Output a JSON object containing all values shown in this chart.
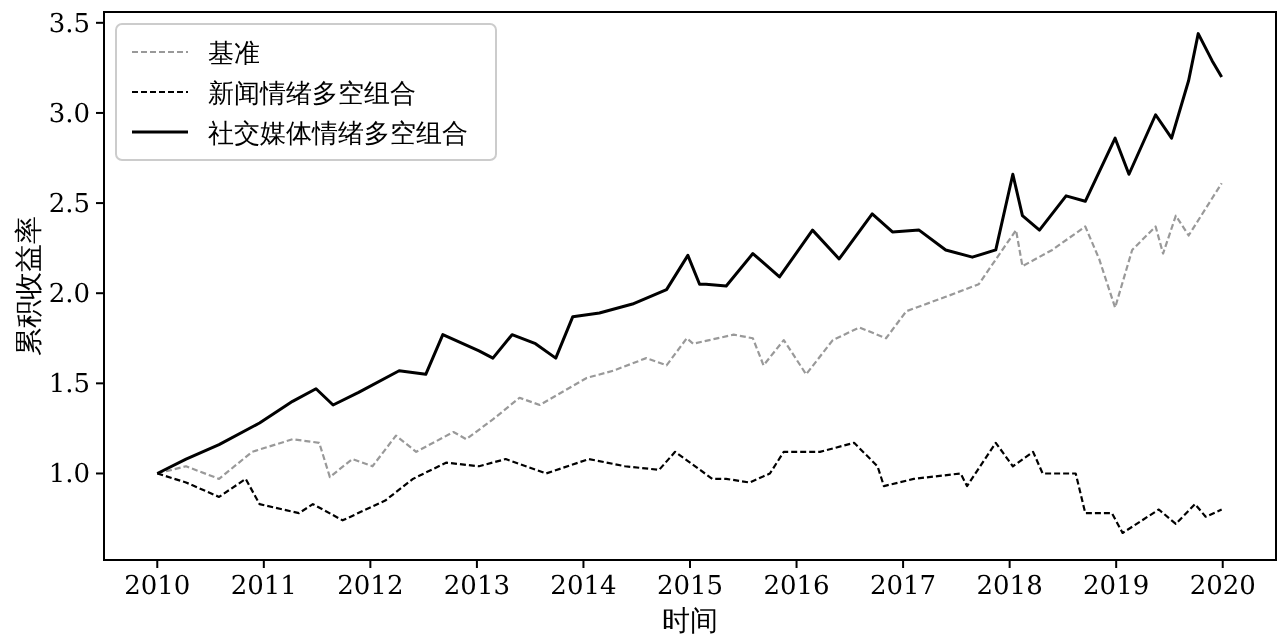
{
  "chart_data": {
    "type": "line",
    "xlabel": "时间",
    "ylabel": "累积收益率",
    "legend": "top left",
    "grid": false,
    "marker": "none",
    "xlim": [
      2009.5,
      2020.5
    ],
    "ylim": [
      0.52,
      3.56
    ],
    "xticks": [
      2010,
      2011,
      2012,
      2013,
      2014,
      2015,
      2016,
      2017,
      2018,
      2019,
      2020
    ],
    "yticks": [
      {
        "value": 1,
        "label": "1.0"
      },
      {
        "value": 1.5,
        "label": "1.5"
      },
      {
        "value": 2,
        "label": "2.0"
      },
      {
        "value": 2.5,
        "label": "2.5"
      },
      {
        "value": 3,
        "label": "3.0"
      },
      {
        "value": 3.5,
        "label": "3.5"
      }
    ],
    "series": [
      {
        "name": "基准",
        "color": "#999999",
        "line_style": "dashed",
        "x": [
          2010,
          2010.27,
          2010.58,
          2010.89,
          2011.27,
          2011.52,
          2011.62,
          2011.83,
          2012.02,
          2012.24,
          2012.43,
          2012.78,
          2012.9,
          2013.15,
          2013.4,
          2013.59,
          2014.03,
          2014.28,
          2014.59,
          2014.78,
          2014.97,
          2015.03,
          2015.41,
          2015.59,
          2015.69,
          2015.88,
          2016.09,
          2016.34,
          2016.59,
          2016.84,
          2017.03,
          2017.4,
          2017.71,
          2018.06,
          2018.12,
          2018.4,
          2018.71,
          2018.84,
          2018.99,
          2019.15,
          2019.37,
          2019.44,
          2019.56,
          2019.68,
          2019.99
        ],
        "values": [
          1.0,
          1.04,
          0.97,
          1.12,
          1.19,
          1.17,
          0.98,
          1.08,
          1.04,
          1.21,
          1.12,
          1.23,
          1.19,
          1.3,
          1.42,
          1.38,
          1.53,
          1.57,
          1.64,
          1.6,
          1.75,
          1.72,
          1.77,
          1.75,
          1.6,
          1.74,
          1.55,
          1.74,
          1.81,
          1.75,
          1.9,
          1.98,
          2.05,
          2.35,
          2.15,
          2.24,
          2.37,
          2.19,
          1.92,
          2.24,
          2.37,
          2.22,
          2.43,
          2.32,
          2.61
        ]
      },
      {
        "name": "新闻情绪多空组合",
        "color": "#000000",
        "line_style": "dashed",
        "x": [
          2010,
          2010.27,
          2010.58,
          2010.83,
          2010.96,
          2011.33,
          2011.46,
          2011.74,
          2012.14,
          2012.4,
          2012.71,
          2013.02,
          2013.27,
          2013.65,
          2014.05,
          2014.39,
          2014.71,
          2014.86,
          2015.21,
          2015.34,
          2015.56,
          2015.75,
          2015.88,
          2016.22,
          2016.54,
          2016.76,
          2016.82,
          2017.1,
          2017.54,
          2017.6,
          2017.87,
          2018.03,
          2018.22,
          2018.31,
          2018.62,
          2018.71,
          2018.96,
          2019.06,
          2019.4,
          2019.56,
          2019.74,
          2019.84,
          2019.99
        ],
        "values": [
          1.0,
          0.95,
          0.87,
          0.97,
          0.83,
          0.78,
          0.83,
          0.74,
          0.85,
          0.97,
          1.06,
          1.04,
          1.08,
          1.0,
          1.08,
          1.04,
          1.02,
          1.12,
          0.97,
          0.97,
          0.95,
          1.0,
          1.12,
          1.12,
          1.17,
          1.04,
          0.93,
          0.97,
          1.0,
          0.93,
          1.17,
          1.04,
          1.12,
          1.0,
          1.0,
          0.78,
          0.78,
          0.67,
          0.8,
          0.72,
          0.83,
          0.76,
          0.8
        ]
      },
      {
        "name": "社交媒体情绪多空组合",
        "color": "#000000",
        "line_style": "solid",
        "x": [
          2010,
          2010.27,
          2010.58,
          2010.96,
          2011.27,
          2011.49,
          2011.65,
          2011.89,
          2012.27,
          2012.52,
          2012.68,
          2013.02,
          2013.15,
          2013.33,
          2013.55,
          2013.74,
          2013.9,
          2014.15,
          2014.46,
          2014.78,
          2014.98,
          2015.09,
          2015.15,
          2015.34,
          2015.59,
          2015.84,
          2016.15,
          2016.4,
          2016.71,
          2016.9,
          2017.15,
          2017.4,
          2017.65,
          2017.87,
          2018.03,
          2018.12,
          2018.28,
          2018.53,
          2018.71,
          2018.99,
          2019.12,
          2019.37,
          2019.52,
          2019.68,
          2019.77,
          2019.9,
          2019.99
        ],
        "values": [
          1.0,
          1.08,
          1.16,
          1.28,
          1.4,
          1.47,
          1.38,
          1.45,
          1.57,
          1.55,
          1.77,
          1.68,
          1.64,
          1.77,
          1.72,
          1.64,
          1.87,
          1.89,
          1.94,
          2.02,
          2.21,
          2.05,
          2.05,
          2.04,
          2.22,
          2.09,
          2.35,
          2.19,
          2.44,
          2.34,
          2.35,
          2.24,
          2.2,
          2.24,
          2.66,
          2.43,
          2.35,
          2.54,
          2.51,
          2.86,
          2.66,
          2.99,
          2.86,
          3.18,
          3.44,
          3.29,
          3.2
        ]
      }
    ]
  }
}
